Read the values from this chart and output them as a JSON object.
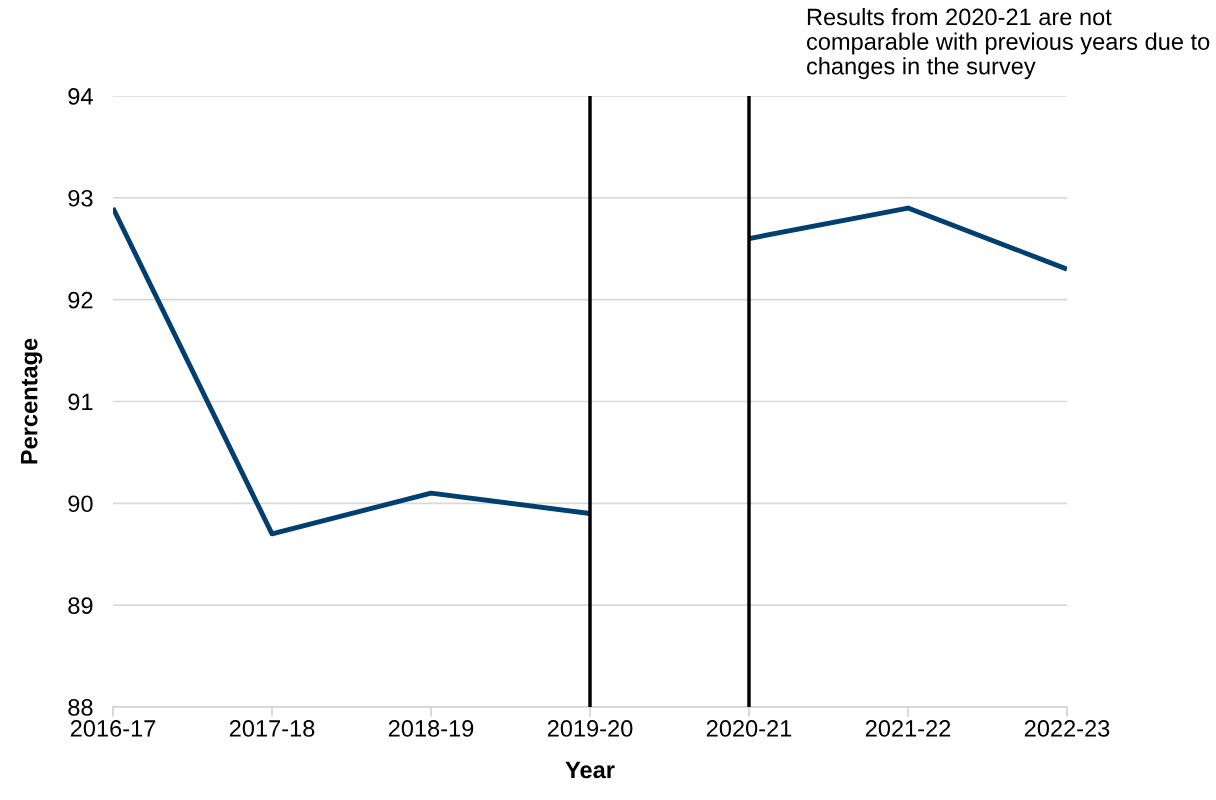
{
  "chart_data": {
    "type": "line",
    "xlabel": "Year",
    "ylabel": "Percentage",
    "categories": [
      "2016-17",
      "2017-18",
      "2018-19",
      "2019-20",
      "2020-21",
      "2021-22",
      "2022-23"
    ],
    "series": [
      {
        "color": "#003f6f",
        "values": [
          92.9,
          89.7,
          90.1,
          89.9,
          null,
          null,
          null
        ]
      },
      {
        "color": "#003f6f",
        "values": [
          null,
          null,
          null,
          null,
          92.6,
          92.9,
          92.3
        ]
      }
    ],
    "ylim": [
      88,
      94
    ],
    "yticks": [
      88,
      89,
      90,
      91,
      92,
      93,
      94
    ],
    "grid": "y",
    "marker": "none",
    "line_style": "solid",
    "ref_lines": [
      {
        "axis": "x",
        "value": "2019-20",
        "color": "#000000"
      },
      {
        "axis": "x",
        "value": "2020-21",
        "color": "#000000"
      }
    ],
    "annotations": [
      "Results from 2020-21 are not comparable with previous years due to changes in the survey"
    ]
  }
}
